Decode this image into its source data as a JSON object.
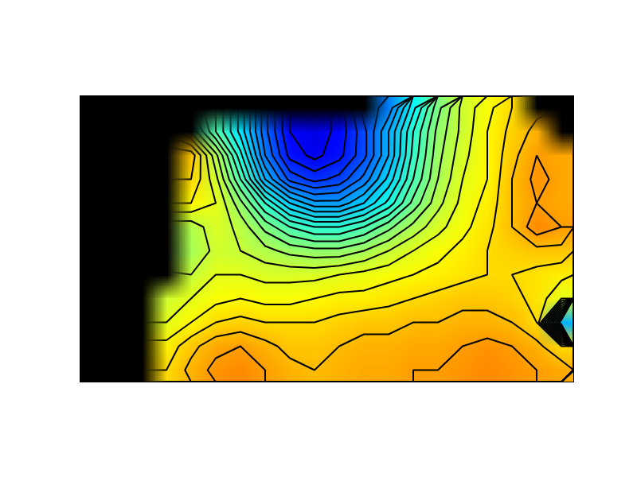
{
  "chart_data": {
    "type": "contour",
    "xlim": [
      0,
      20
    ],
    "ylim": [
      0,
      12
    ],
    "tick_labels": false,
    "zlim": [
      0,
      100
    ],
    "levels": [
      12,
      15,
      18,
      21,
      24,
      27,
      30,
      33,
      36,
      39,
      42,
      45,
      48,
      51,
      54,
      57,
      60,
      63,
      66,
      69,
      72
    ],
    "z": [
      [
        null,
        null,
        null,
        null,
        null,
        null,
        null,
        null,
        null,
        null,
        null,
        null,
        25,
        38,
        50,
        58,
        62,
        66,
        null,
        null
      ],
      [
        null,
        null,
        null,
        null,
        null,
        45,
        35,
        22,
        12,
        10,
        13,
        20,
        30,
        42,
        52,
        58,
        63,
        67,
        70,
        null
      ],
      [
        null,
        null,
        null,
        null,
        68,
        55,
        40,
        24,
        14,
        11,
        14,
        20,
        30,
        43,
        53,
        59,
        63,
        68,
        72,
        71
      ],
      [
        null,
        null,
        null,
        null,
        66,
        58,
        45,
        30,
        20,
        17,
        19,
        25,
        34,
        45,
        54,
        60,
        63,
        69,
        73,
        71
      ],
      [
        null,
        null,
        null,
        null,
        63,
        60,
        52,
        42,
        33,
        28,
        28,
        33,
        40,
        49,
        56,
        61,
        64,
        69,
        72,
        71
      ],
      [
        null,
        null,
        null,
        null,
        55,
        59,
        56,
        50,
        45,
        42,
        42,
        45,
        50,
        55,
        59,
        62,
        65,
        69,
        74,
        72
      ],
      [
        null,
        null,
        null,
        null,
        54,
        58,
        57,
        55,
        53,
        52,
        52,
        54,
        57,
        60,
        62,
        64,
        66,
        67,
        68,
        68
      ],
      [
        null,
        null,
        null,
        null,
        57,
        60,
        60,
        59,
        59,
        59,
        60,
        61,
        62,
        63,
        64,
        65,
        66,
        66,
        65,
        64
      ],
      [
        null,
        null,
        null,
        58,
        60,
        62,
        63,
        62,
        62,
        63,
        64,
        64,
        65,
        66,
        67,
        68,
        68,
        67,
        65,
        60
      ],
      [
        null,
        null,
        null,
        60,
        63,
        66,
        67,
        66,
        66,
        66,
        67,
        68,
        68,
        69,
        69,
        70,
        70,
        69,
        66,
        30
      ],
      [
        null,
        null,
        null,
        64,
        68,
        71,
        72,
        70,
        68,
        68,
        69,
        70,
        70,
        71,
        71,
        72,
        73,
        72,
        70,
        66
      ],
      [
        null,
        null,
        null,
        66,
        70,
        73,
        74,
        72,
        70,
        69,
        70,
        71,
        71,
        72,
        72,
        73,
        74,
        73,
        72,
        71
      ]
    ]
  }
}
